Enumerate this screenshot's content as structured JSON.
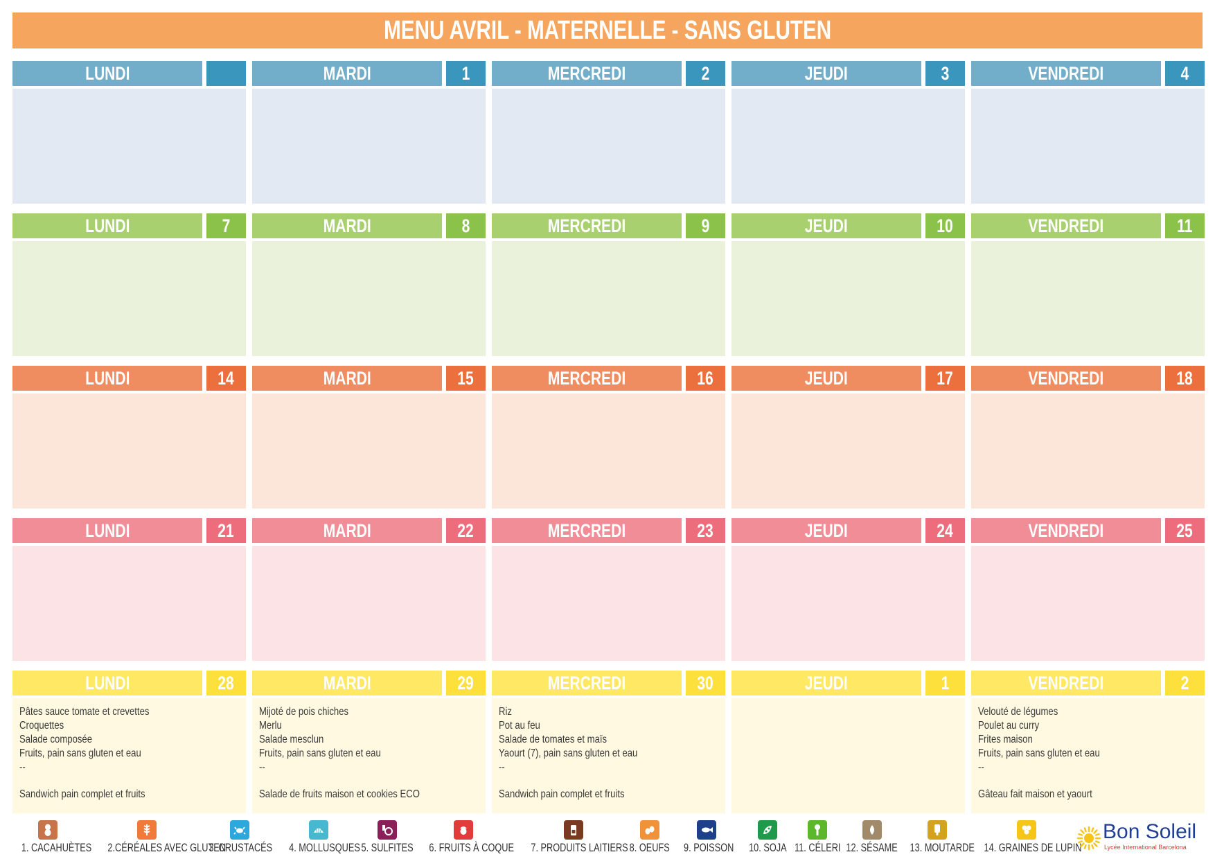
{
  "title": "MENU AVRIL - MATERNELLE - SANS GLUTEN",
  "weeks": [
    {
      "days": [
        {
          "name": "LUNDI",
          "num": "",
          "menu": []
        },
        {
          "name": "MARDI",
          "num": "1",
          "menu": []
        },
        {
          "name": "MERCREDI",
          "num": "2",
          "menu": []
        },
        {
          "name": "JEUDI",
          "num": "3",
          "menu": []
        },
        {
          "name": "VENDREDI",
          "num": "4",
          "menu": []
        }
      ]
    },
    {
      "days": [
        {
          "name": "LUNDI",
          "num": "7",
          "menu": []
        },
        {
          "name": "MARDI",
          "num": "8",
          "menu": []
        },
        {
          "name": "MERCREDI",
          "num": "9",
          "menu": []
        },
        {
          "name": "JEUDI",
          "num": "10",
          "menu": []
        },
        {
          "name": "VENDREDI",
          "num": "11",
          "menu": []
        }
      ]
    },
    {
      "days": [
        {
          "name": "LUNDI",
          "num": "14",
          "menu": []
        },
        {
          "name": "MARDI",
          "num": "15",
          "menu": []
        },
        {
          "name": "MERCREDI",
          "num": "16",
          "menu": []
        },
        {
          "name": "JEUDI",
          "num": "17",
          "menu": []
        },
        {
          "name": "VENDREDI",
          "num": "18",
          "menu": []
        }
      ]
    },
    {
      "days": [
        {
          "name": "LUNDI",
          "num": "21",
          "menu": []
        },
        {
          "name": "MARDI",
          "num": "22",
          "menu": []
        },
        {
          "name": "MERCREDI",
          "num": "23",
          "menu": []
        },
        {
          "name": "JEUDI",
          "num": "24",
          "menu": []
        },
        {
          "name": "VENDREDI",
          "num": "25",
          "menu": []
        }
      ]
    },
    {
      "days": [
        {
          "name": "LUNDI",
          "num": "28",
          "menu": [
            "Pâtes sauce tomate et crevettes",
            "Croquettes",
            "Salade composée",
            "Fruits, pain sans gluten et eau",
            "--",
            "",
            "Sandwich pain complet et fruits"
          ]
        },
        {
          "name": "MARDI",
          "num": "29",
          "menu": [
            "Mijoté de pois chiches",
            "Merlu",
            "Salade mesclun",
            "Fruits, pain sans gluten et eau",
            "--",
            "",
            "Salade de fruits maison et cookies ECO"
          ]
        },
        {
          "name": "MERCREDI",
          "num": "30",
          "menu": [
            "Riz",
            "Pot au feu",
            "Salade de tomates et maïs",
            "Yaourt (7), pain sans gluten et eau",
            "--",
            "",
            "Sandwich pain complet et fruits"
          ]
        },
        {
          "name": "JEUDI",
          "num": "1",
          "menu": []
        },
        {
          "name": "VENDREDI",
          "num": "2",
          "menu": [
            "Velouté de légumes",
            "Poulet au curry",
            "Frites maison",
            "Fruits, pain sans gluten et eau",
            "--",
            "",
            "Gâteau fait maison et yaourt"
          ]
        }
      ]
    }
  ],
  "allergens": [
    {
      "label": "1. CACAHUÈTES",
      "icon": "peanut-icon",
      "color": "#c8744a"
    },
    {
      "label": "2.CÉRÉALES AVEC GLUTEN",
      "icon": "wheat-icon",
      "color": "#f07a3a"
    },
    {
      "label": "3. CRUSTACÉS",
      "icon": "crab-icon",
      "color": "#2da8dc"
    },
    {
      "label": "4. MOLLUSQUES",
      "icon": "shell-icon",
      "color": "#48b8d0"
    },
    {
      "label": "5. SULFITES",
      "icon": "sulfite-icon",
      "color": "#8a1f5a"
    },
    {
      "label": "6. FRUITS À COQUE",
      "icon": "nut-icon",
      "color": "#e23b3b"
    },
    {
      "label": "7. PRODUITS LAITIERS",
      "icon": "milk-icon",
      "color": "#7a3a22"
    },
    {
      "label": "8. OEUFS",
      "icon": "egg-icon",
      "color": "#f0923a"
    },
    {
      "label": "9. POISSON",
      "icon": "fish-icon",
      "color": "#1e3f8a"
    },
    {
      "label": "10. SOJA",
      "icon": "soy-icon",
      "color": "#1f9a4a"
    },
    {
      "label": "11. CÉLERI",
      "icon": "celery-icon",
      "color": "#5cb82a"
    },
    {
      "label": "12. SÉSAME",
      "icon": "sesame-icon",
      "color": "#a08a6a"
    },
    {
      "label": "13. MOUTARDE",
      "icon": "mustard-icon",
      "color": "#d4a21e"
    },
    {
      "label": "14. GRAINES DE LUPIN",
      "icon": "lupin-icon",
      "color": "#f5c518"
    }
  ],
  "logo": {
    "name": "Bon Soleil",
    "subtitle": "Lycée International Barcelona"
  }
}
